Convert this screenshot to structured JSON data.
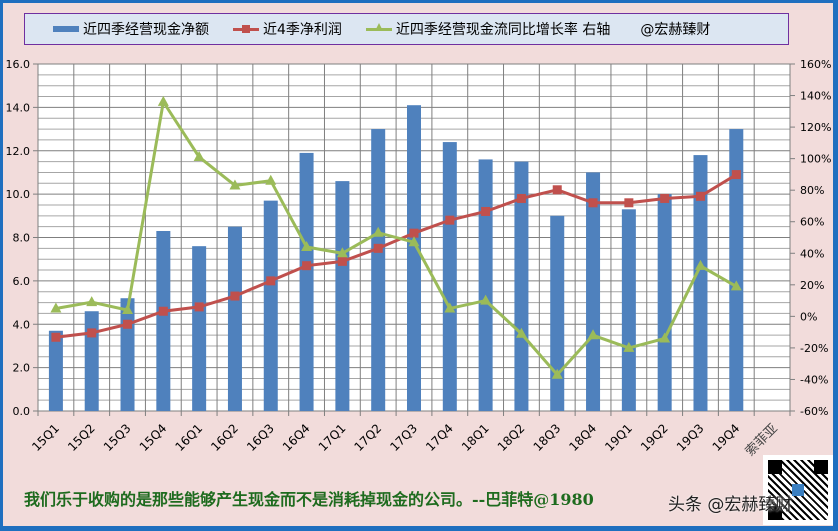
{
  "legend": {
    "series1": "近四季经营现金净额",
    "series2": "近4季净利润",
    "series3": "近四季经营现金流同比增长率 右轴",
    "handle": "@宏赫臻财"
  },
  "caption": "我们乐于收购的是那些能够产生现金而不是消耗掉现金的公司。--巴菲特@1980",
  "watermark": "头条 @宏赫臻财",
  "company_label": "索菲亚",
  "colors": {
    "bar": "#4f81bd",
    "red_line": "#c0504d",
    "green_line": "#9bbb59",
    "background": "#f2dcdb",
    "legend_bg": "#dce6f2",
    "frame_border": "#1f6fbf",
    "caption": "#1e6b1e"
  },
  "chart_data": {
    "type": "bar",
    "title": "",
    "categories": [
      "15Q1",
      "15Q2",
      "15Q3",
      "15Q4",
      "16Q1",
      "16Q2",
      "16Q3",
      "16Q4",
      "17Q1",
      "17Q2",
      "17Q3",
      "17Q4",
      "18Q1",
      "18Q2",
      "18Q3",
      "18Q4",
      "19Q1",
      "19Q2",
      "19Q3",
      "19Q4"
    ],
    "series": [
      {
        "name": "近四季经营现金净额",
        "type": "bar",
        "axis": "left",
        "values": [
          3.7,
          4.6,
          5.2,
          8.3,
          7.6,
          8.5,
          9.7,
          11.9,
          10.6,
          13.0,
          14.1,
          12.4,
          11.6,
          11.5,
          9.0,
          11.0,
          9.3,
          10.0,
          11.8,
          13.0
        ]
      },
      {
        "name": "近4季净利润",
        "type": "line",
        "axis": "left",
        "marker": "square",
        "values": [
          3.4,
          3.6,
          4.0,
          4.6,
          4.8,
          5.3,
          6.0,
          6.7,
          6.9,
          7.5,
          8.2,
          8.8,
          9.2,
          9.8,
          10.2,
          9.6,
          9.6,
          9.8,
          9.9,
          10.9
        ]
      },
      {
        "name": "近四季经营现金流同比增长率 右轴",
        "type": "line",
        "axis": "right",
        "marker": "triangle",
        "unit": "%",
        "values": [
          5,
          9,
          4,
          136,
          101,
          83,
          86,
          44,
          40,
          53,
          47,
          5,
          10,
          -11,
          -37,
          -12,
          -20,
          -14,
          32,
          19
        ]
      }
    ],
    "xlabel": "",
    "ylabel": "",
    "ylim": [
      0,
      16
    ],
    "y_ticks": [
      "0.0",
      "2.0",
      "4.0",
      "6.0",
      "8.0",
      "10.0",
      "12.0",
      "14.0",
      "16.0"
    ],
    "y2lim": [
      -60,
      160
    ],
    "y2_ticks": [
      "-60%",
      "-40%",
      "-20%",
      "0%",
      "20%",
      "40%",
      "60%",
      "80%",
      "100%",
      "120%",
      "140%",
      "160%"
    ],
    "grid": true,
    "legend_position": "top"
  }
}
